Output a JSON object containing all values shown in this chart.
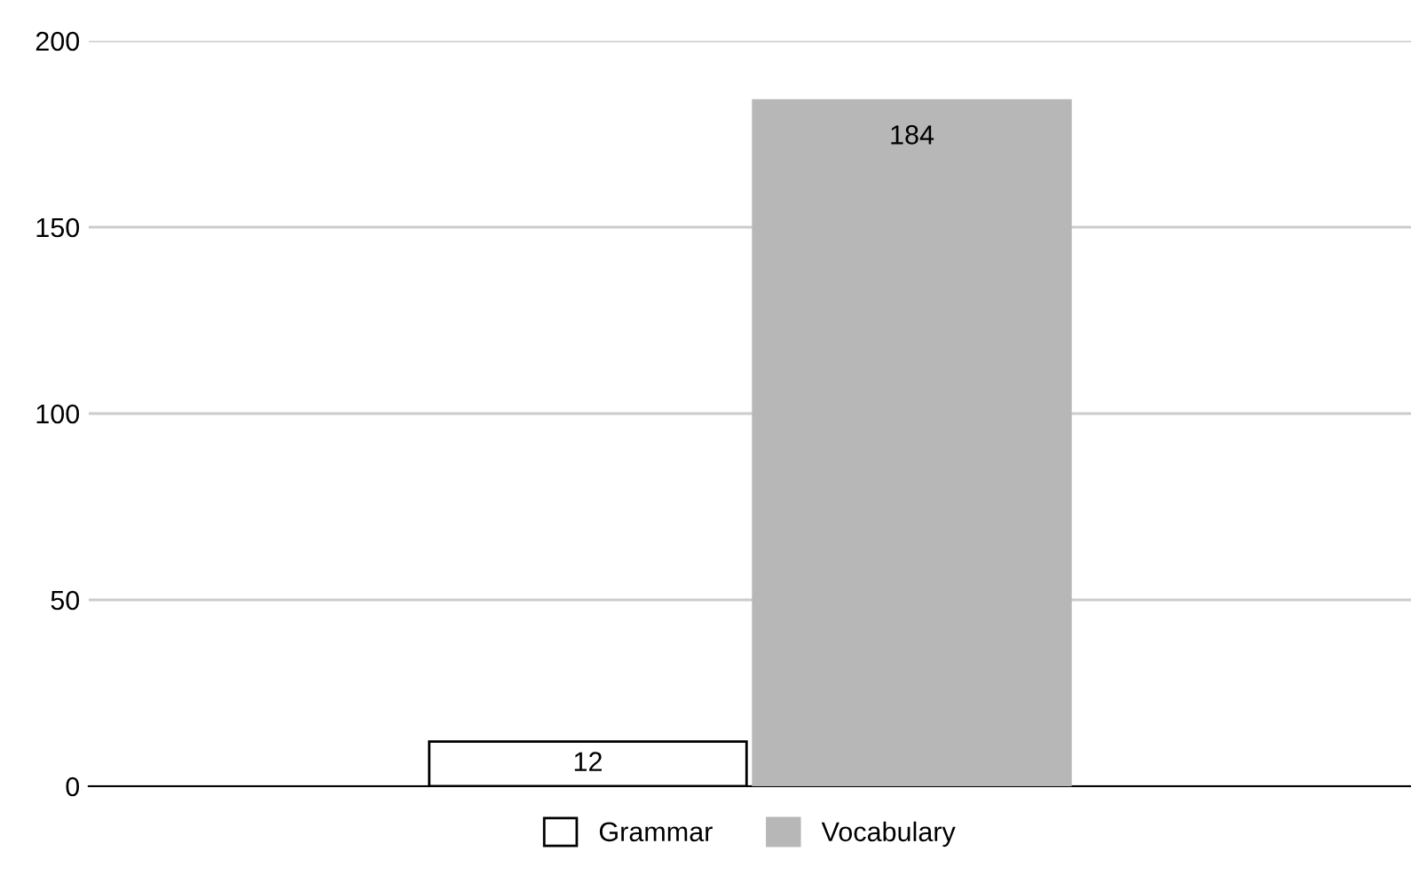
{
  "chart_data": {
    "type": "bar",
    "categories": [
      null
    ],
    "series": [
      {
        "name": "Grammar",
        "color": "#ffffff",
        "values": [
          12
        ]
      },
      {
        "name": "Vocabulary",
        "color": "#b7b7b7",
        "values": [
          184
        ]
      }
    ],
    "ylim": [
      0,
      200
    ],
    "yticks": [
      0,
      50,
      100,
      150,
      200
    ],
    "grid": "y",
    "legend": "bottom",
    "data_labels": true
  }
}
